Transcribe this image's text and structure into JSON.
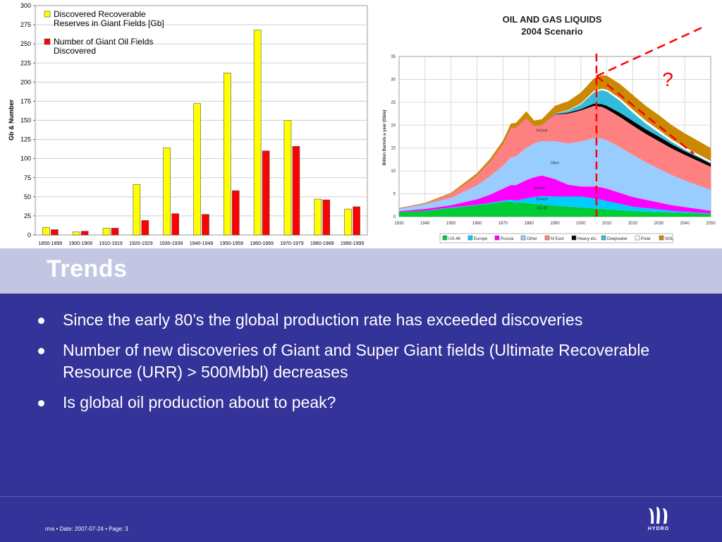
{
  "slide": {
    "title": "Trends",
    "bullets": [
      "Since the early 80’s the global production rate has exceeded discoveries",
      "Number of new discoveries of Giant and Super Giant fields (Ultimate Recoverable Resource (URR) > 500Mbbl) decreases",
      "Is global oil production about to peak?"
    ],
    "footer": "rms • Date: 2007-07-24 • Page: 3",
    "logo_text": "HYDRO",
    "logo_icon": "hydro-logo-icon"
  },
  "chart_data": [
    {
      "type": "bar",
      "categories": [
        "1850-1899",
        "1900-1909",
        "1910-1919",
        "1920-1929",
        "1930-1939",
        "1940-1949",
        "1950-1959",
        "1960-1969",
        "1970-1979",
        "1980-1989",
        "1990-1999"
      ],
      "series": [
        {
          "name": "Discovered Recoverable Reserves in Giant Fields [Gb]",
          "values": [
            10,
            4,
            9,
            66,
            114,
            172,
            212,
            268,
            150,
            47,
            34
          ],
          "color": "#ffff00"
        },
        {
          "name": "Number of Giant Oil Fields Discovered",
          "values": [
            7,
            5,
            9,
            19,
            28,
            27,
            58,
            110,
            116,
            46,
            37
          ],
          "color": "#ff0000"
        }
      ],
      "legend_lines": [
        [
          "Discovered Recoverable",
          "Reserves in Giant Fields [Gb]"
        ],
        [
          "Number of Giant Oil Fields",
          "Discovered"
        ]
      ],
      "ylabel": "Gb & Number",
      "ylim": [
        0,
        300
      ],
      "yticks": [
        0,
        25,
        50,
        75,
        100,
        125,
        150,
        175,
        200,
        225,
        250,
        275,
        300
      ],
      "grid": true,
      "legend": "top-left"
    },
    {
      "type": "area",
      "title_lines": [
        "OIL AND GAS LIQUIDS",
        "2004 Scenario"
      ],
      "ylabel": "Billion Barrels a year (Gb/a)",
      "ylim": [
        0,
        35
      ],
      "xlim": [
        1930,
        2050
      ],
      "yticks": [
        0,
        5,
        10,
        15,
        20,
        25,
        30,
        35
      ],
      "xticks": [
        1930,
        1940,
        1950,
        1960,
        1970,
        1980,
        1990,
        2000,
        2010,
        2020,
        2030,
        2040,
        2050
      ],
      "grid": true,
      "x": [
        1930,
        1940,
        1950,
        1960,
        1965,
        1970,
        1973,
        1975,
        1979,
        1982,
        1985,
        1990,
        1995,
        2000,
        2005,
        2008,
        2010,
        2015,
        2020,
        2025,
        2030,
        2035,
        2040,
        2045,
        2050
      ],
      "series": [
        {
          "name": "US-48",
          "color": "#00cc33",
          "values": [
            1.0,
            1.3,
            1.9,
            2.5,
            2.8,
            3.2,
            3.3,
            3.0,
            3.0,
            2.8,
            2.7,
            2.4,
            2.2,
            2.0,
            1.8,
            1.7,
            1.6,
            1.4,
            1.2,
            1.1,
            1.0,
            0.9,
            0.8,
            0.7,
            0.6
          ]
        },
        {
          "name": "Europe",
          "color": "#00ccff",
          "values": [
            0.0,
            0.0,
            0.1,
            0.1,
            0.2,
            0.3,
            0.4,
            0.5,
            1.0,
            1.5,
            1.8,
            2.0,
            2.2,
            2.4,
            2.2,
            2.0,
            1.8,
            1.4,
            1.0,
            0.8,
            0.6,
            0.4,
            0.3,
            0.2,
            0.1
          ]
        },
        {
          "name": "Russia",
          "color": "#ff00ff",
          "values": [
            0.2,
            0.4,
            0.5,
            1.2,
            1.8,
            2.6,
            3.2,
            3.4,
            4.0,
            4.3,
            4.5,
            3.8,
            2.6,
            2.2,
            2.6,
            2.7,
            2.7,
            2.4,
            2.1,
            1.8,
            1.5,
            1.2,
            1.0,
            0.8,
            0.6
          ]
        },
        {
          "name": "Other",
          "color": "#99ccff",
          "values": [
            0.5,
            1.0,
            1.6,
            3.0,
            4.0,
            5.0,
            6.0,
            6.3,
            7.0,
            7.4,
            7.5,
            8.3,
            9.0,
            9.8,
            10.6,
            10.7,
            10.6,
            10.0,
            9.2,
            8.2,
            7.4,
            6.6,
            5.8,
            5.2,
            4.6
          ]
        },
        {
          "name": "M East",
          "color": "#ff8080",
          "values": [
            0.1,
            0.2,
            0.9,
            2.2,
            3.2,
            4.7,
            6.4,
            6.3,
            6.5,
            3.8,
            3.5,
            5.8,
            6.5,
            6.8,
            7.0,
            6.9,
            6.8,
            6.6,
            6.4,
            6.2,
            6.0,
            5.8,
            5.6,
            5.3,
            5.0
          ]
        },
        {
          "name": "Heavy etc.",
          "color": "#000000",
          "values": [
            0,
            0,
            0,
            0,
            0,
            0,
            0,
            0,
            0,
            0,
            0,
            0.1,
            0.2,
            0.3,
            0.5,
            0.6,
            0.7,
            0.9,
            1.0,
            1.0,
            1.0,
            0.9,
            0.8,
            0.8,
            0.7
          ]
        },
        {
          "name": "Deepwater",
          "color": "#33bbdd",
          "values": [
            0,
            0,
            0,
            0,
            0,
            0,
            0,
            0,
            0,
            0,
            0,
            0.1,
            0.4,
            1.0,
            2.4,
            3.0,
            3.1,
            2.6,
            1.8,
            1.2,
            0.8,
            0.5,
            0.3,
            0.2,
            0.1
          ]
        },
        {
          "name": "Polar",
          "color": "#ffffff",
          "values": [
            0,
            0,
            0,
            0,
            0,
            0,
            0,
            0,
            0,
            0,
            0,
            0.1,
            0.2,
            0.3,
            0.4,
            0.4,
            0.5,
            0.6,
            0.7,
            0.7,
            0.7,
            0.6,
            0.6,
            0.5,
            0.5
          ]
        },
        {
          "name": "NGL",
          "color": "#cc8800",
          "values": [
            0.1,
            0.1,
            0.2,
            0.5,
            0.6,
            0.8,
            1.0,
            1.0,
            1.5,
            1.2,
            1.3,
            1.6,
            1.9,
            2.3,
            2.7,
            2.9,
            3.0,
            3.1,
            3.2,
            3.2,
            3.2,
            3.1,
            3.0,
            2.9,
            2.8
          ]
        }
      ],
      "labels_in_chart": [
        "M.East",
        "Other",
        "Russia",
        "Europe",
        "US-48"
      ],
      "annotation_text": "?",
      "marker_year": 2006,
      "legend": "bottom"
    }
  ]
}
